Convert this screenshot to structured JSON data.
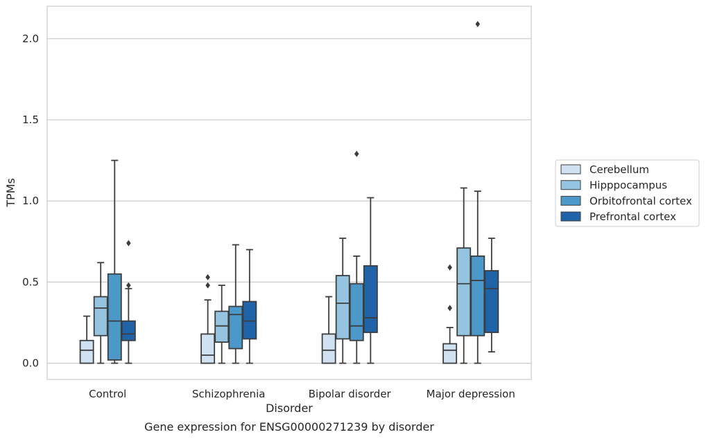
{
  "chart_data": {
    "type": "box",
    "title": "",
    "caption": "Gene expression for ENSG00000271239 by disorder",
    "xlabel": "Disorder",
    "ylabel": "TPMs",
    "ylim": [
      -0.1,
      2.2
    ],
    "yticks": [
      0.0,
      0.5,
      1.0,
      1.5,
      2.0
    ],
    "ytick_labels": [
      "0.0",
      "0.5",
      "1.0",
      "1.5",
      "2.0"
    ],
    "grid": "horizontal",
    "legend_position": "right",
    "categories": [
      "Control",
      "Schizophrenia",
      "Bipolar disorder",
      "Major depression"
    ],
    "series": [
      {
        "name": "Cerebellum",
        "color": "#d0e1f2",
        "boxes": [
          {
            "whisker_low": 0.0,
            "q1": 0.0,
            "median": 0.08,
            "q3": 0.14,
            "whisker_high": 0.29,
            "outliers": []
          },
          {
            "whisker_low": 0.0,
            "q1": 0.0,
            "median": 0.05,
            "q3": 0.18,
            "whisker_high": 0.39,
            "outliers": [
              0.48,
              0.53
            ]
          },
          {
            "whisker_low": 0.0,
            "q1": 0.0,
            "median": 0.08,
            "q3": 0.18,
            "whisker_high": 0.41,
            "outliers": []
          },
          {
            "whisker_low": 0.0,
            "q1": 0.0,
            "median": 0.08,
            "q3": 0.12,
            "whisker_high": 0.22,
            "outliers": [
              0.34,
              0.59
            ]
          }
        ]
      },
      {
        "name": "Hipppocampus",
        "color": "#94c4df",
        "boxes": [
          {
            "whisker_low": 0.0,
            "q1": 0.17,
            "median": 0.34,
            "q3": 0.41,
            "whisker_high": 0.62,
            "outliers": []
          },
          {
            "whisker_low": 0.0,
            "q1": 0.13,
            "median": 0.23,
            "q3": 0.32,
            "whisker_high": 0.48,
            "outliers": []
          },
          {
            "whisker_low": 0.0,
            "q1": 0.15,
            "median": 0.37,
            "q3": 0.54,
            "whisker_high": 0.77,
            "outliers": []
          },
          {
            "whisker_low": 0.0,
            "q1": 0.17,
            "median": 0.49,
            "q3": 0.71,
            "whisker_high": 1.08,
            "outliers": []
          }
        ]
      },
      {
        "name": "Orbitofrontal cortex",
        "color": "#4b98c9",
        "boxes": [
          {
            "whisker_low": 0.0,
            "q1": 0.02,
            "median": 0.26,
            "q3": 0.55,
            "whisker_high": 1.25,
            "outliers": []
          },
          {
            "whisker_low": 0.0,
            "q1": 0.09,
            "median": 0.3,
            "q3": 0.35,
            "whisker_high": 0.73,
            "outliers": []
          },
          {
            "whisker_low": 0.0,
            "q1": 0.14,
            "median": 0.23,
            "q3": 0.49,
            "whisker_high": 0.66,
            "outliers": [
              1.29
            ]
          },
          {
            "whisker_low": 0.0,
            "q1": 0.17,
            "median": 0.51,
            "q3": 0.66,
            "whisker_high": 1.06,
            "outliers": [
              2.09
            ]
          }
        ]
      },
      {
        "name": "Prefrontal cortex",
        "color": "#1f63a8",
        "boxes": [
          {
            "whisker_low": 0.0,
            "q1": 0.14,
            "median": 0.18,
            "q3": 0.26,
            "whisker_high": 0.46,
            "outliers": [
              0.48,
              0.74
            ]
          },
          {
            "whisker_low": 0.0,
            "q1": 0.15,
            "median": 0.26,
            "q3": 0.38,
            "whisker_high": 0.7,
            "outliers": []
          },
          {
            "whisker_low": 0.0,
            "q1": 0.19,
            "median": 0.28,
            "q3": 0.6,
            "whisker_high": 1.02,
            "outliers": []
          },
          {
            "whisker_low": 0.07,
            "q1": 0.19,
            "median": 0.46,
            "q3": 0.57,
            "whisker_high": 0.77,
            "outliers": []
          }
        ]
      }
    ]
  }
}
